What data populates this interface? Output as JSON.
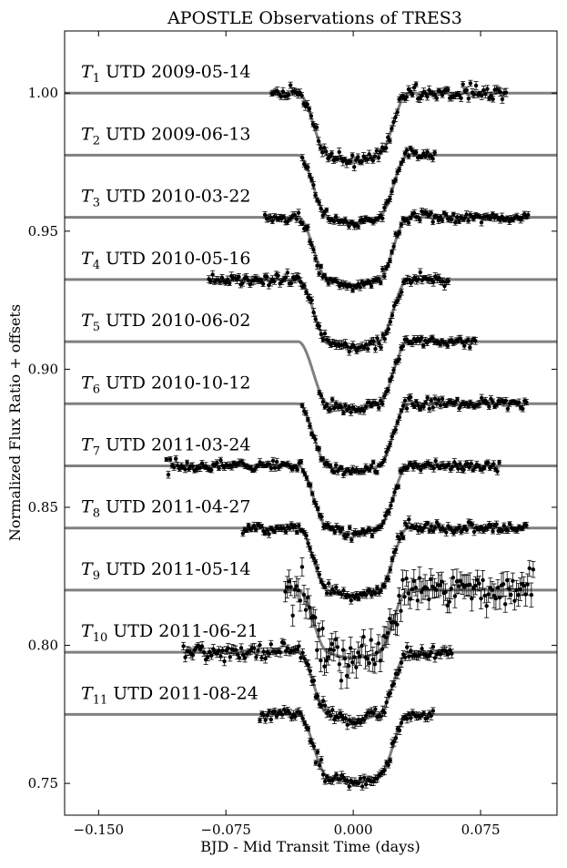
{
  "chart_data": {
    "type": "line",
    "title": "APOSTLE Observations of TRES3",
    "xlabel": "BJD - Mid Transit Time (days)",
    "ylabel": "Normalized Flux Ratio + offsets",
    "xlim": [
      -0.17,
      0.12
    ],
    "ylim": [
      0.7385,
      1.0225
    ],
    "xticks": [
      -0.15,
      -0.075,
      0.0,
      0.075
    ],
    "xtick_labels": [
      "−0.150",
      "−0.075",
      "0.000",
      "0.075"
    ],
    "yticks": [
      0.75,
      0.8,
      0.85,
      0.9,
      0.95,
      1.0
    ],
    "ytick_labels": [
      "0.75",
      "0.80",
      "0.85",
      "0.90",
      "0.95",
      "1.00"
    ],
    "transit_depth": 0.0245,
    "transit_t1": 0.0325,
    "transit_t2": 0.0145,
    "grid": false,
    "legend": "none",
    "line_color": "#808080",
    "point_color": "#000000",
    "series": [
      {
        "label_main": "T",
        "label_sub": "1",
        "label_rest": " UTD 2009-05-14",
        "baseline": 1.0,
        "data_start": -0.048,
        "data_end": 0.09,
        "scatter": 0.0012,
        "seed": 11
      },
      {
        "label_main": "T",
        "label_sub": "2",
        "label_rest": " UTD 2009-06-13",
        "baseline": 0.9775,
        "data_start": -0.03,
        "data_end": 0.048,
        "scatter": 0.001,
        "seed": 23
      },
      {
        "label_main": "T",
        "label_sub": "3",
        "label_rest": " UTD 2010-03-22",
        "baseline": 0.955,
        "data_start": -0.052,
        "data_end": 0.103,
        "scatter": 0.001,
        "seed": 37
      },
      {
        "label_main": "T",
        "label_sub": "4",
        "label_rest": " UTD 2010-05-16",
        "baseline": 0.9325,
        "data_start": -0.085,
        "data_end": 0.056,
        "scatter": 0.0012,
        "seed": 41
      },
      {
        "label_main": "T",
        "label_sub": "5",
        "label_rest": " UTD 2010-06-02",
        "baseline": 0.91,
        "data_start": -0.02,
        "data_end": 0.072,
        "scatter": 0.001,
        "seed": 53
      },
      {
        "label_main": "T",
        "label_sub": "6",
        "label_rest": " UTD 2010-10-12",
        "baseline": 0.8875,
        "data_start": -0.03,
        "data_end": 0.102,
        "scatter": 0.001,
        "seed": 67
      },
      {
        "label_main": "T",
        "label_sub": "7",
        "label_rest": " UTD 2011-03-24",
        "baseline": 0.865,
        "data_start": -0.11,
        "data_end": 0.086,
        "scatter": 0.001,
        "seed": 71
      },
      {
        "label_main": "T",
        "label_sub": "8",
        "label_rest": " UTD 2011-04-27",
        "baseline": 0.8425,
        "data_start": -0.065,
        "data_end": 0.102,
        "scatter": 0.001,
        "seed": 83
      },
      {
        "label_main": "T",
        "label_sub": "9",
        "label_rest": " UTD 2011-05-14",
        "baseline": 0.82,
        "data_start": -0.04,
        "data_end": 0.106,
        "scatter": 0.0035,
        "seed": 97
      },
      {
        "label_main": "T",
        "label_sub": "10",
        "label_rest": " UTD 2011-06-21",
        "baseline": 0.7975,
        "data_start": -0.1,
        "data_end": 0.058,
        "scatter": 0.0014,
        "seed": 101
      },
      {
        "label_main": "T",
        "label_sub": "11",
        "label_rest": " UTD 2011-08-24",
        "baseline": 0.775,
        "data_start": -0.055,
        "data_end": 0.047,
        "scatter": 0.0012,
        "seed": 113
      }
    ]
  }
}
